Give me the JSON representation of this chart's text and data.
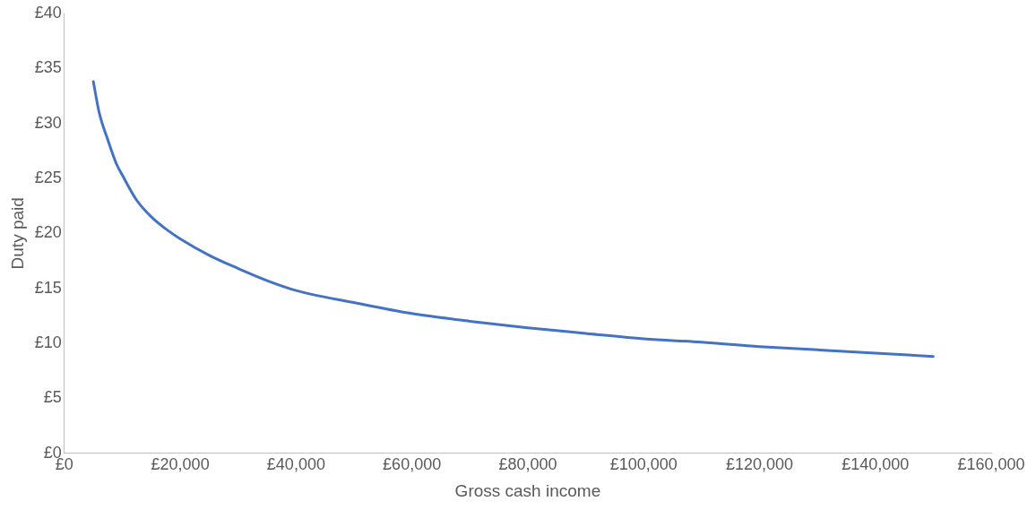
{
  "chart_data": {
    "type": "line",
    "xlabel": "Gross cash income",
    "ylabel": "Duty paid",
    "x": [
      5000,
      6000,
      7500,
      9000,
      10000,
      12500,
      15000,
      17500,
      20000,
      25000,
      30000,
      35000,
      40000,
      50000,
      60000,
      70000,
      80000,
      90000,
      100000,
      110000,
      120000,
      130000,
      140000,
      150000
    ],
    "series": [
      {
        "color": "#4472c4",
        "values": [
          33.8,
          31,
          28.5,
          26.3,
          25.3,
          23,
          21.5,
          20.4,
          19.5,
          18,
          16.8,
          15.7,
          14.8,
          13.7,
          12.7,
          12,
          11.4,
          10.9,
          10.4,
          10.1,
          9.7,
          9.4,
          9.1,
          8.8
        ]
      }
    ],
    "xlim": [
      0,
      160000
    ],
    "xticks": [
      {
        "value": 0,
        "label": "£0"
      },
      {
        "value": 20000,
        "label": "£20,000"
      },
      {
        "value": 40000,
        "label": "£40,000"
      },
      {
        "value": 60000,
        "label": "£60,000"
      },
      {
        "value": 80000,
        "label": "£80,000"
      },
      {
        "value": 100000,
        "label": "£100,000"
      },
      {
        "value": 120000,
        "label": "£120,000"
      },
      {
        "value": 140000,
        "label": "£140,000"
      },
      {
        "value": 160000,
        "label": "£160,000"
      }
    ],
    "ylim": [
      0,
      40
    ],
    "yticks": [
      {
        "value": 0,
        "label": "£0"
      },
      {
        "value": 5,
        "label": "£5"
      },
      {
        "value": 10,
        "label": "£10"
      },
      {
        "value": 15,
        "label": "£15"
      },
      {
        "value": 20,
        "label": "£20"
      },
      {
        "value": 25,
        "label": "£25"
      },
      {
        "value": 30,
        "label": "£30"
      },
      {
        "value": 35,
        "label": "£35"
      },
      {
        "value": 40,
        "label": "£40"
      }
    ],
    "grid": false,
    "legend": false,
    "marker": "none",
    "line_style": "solid"
  }
}
